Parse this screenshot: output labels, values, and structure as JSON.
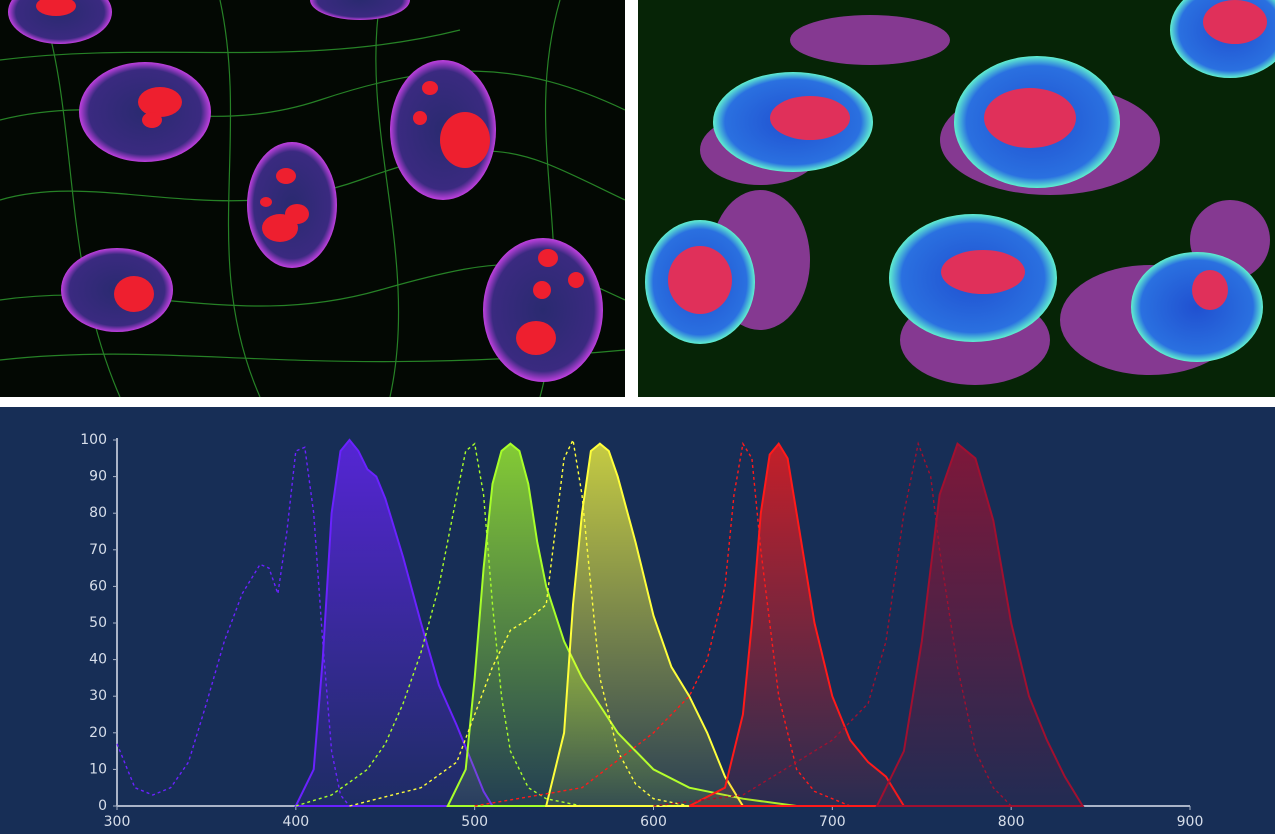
{
  "chart_data": {
    "type": "line",
    "xlim": [
      300,
      900
    ],
    "ylim": [
      0,
      100
    ],
    "xticks": [
      300,
      400,
      500,
      600,
      700,
      800,
      900
    ],
    "yticks": [
      0,
      10,
      20,
      30,
      40,
      50,
      60,
      70,
      80,
      90,
      100
    ],
    "series": [
      {
        "color": "#6a22ff",
        "line_style": "dashed",
        "filled": false,
        "x": [
          300,
          310,
          320,
          330,
          340,
          350,
          360,
          370,
          380,
          385,
          390,
          395,
          400,
          405,
          410,
          415,
          420,
          425,
          430
        ],
        "values": [
          17,
          5,
          3,
          5,
          12,
          28,
          45,
          58,
          66,
          65,
          58,
          75,
          97,
          98,
          80,
          45,
          15,
          3,
          0
        ]
      },
      {
        "color": "#6a22ff",
        "line_style": "solid",
        "filled": true,
        "x": [
          400,
          410,
          415,
          420,
          425,
          430,
          435,
          440,
          445,
          450,
          460,
          470,
          480,
          490,
          500,
          505,
          510
        ],
        "values": [
          0,
          10,
          40,
          80,
          97,
          100,
          97,
          92,
          90,
          84,
          68,
          50,
          33,
          22,
          10,
          4,
          0
        ]
      },
      {
        "color": "#a8ff2a",
        "line_style": "dashed",
        "filled": false,
        "x": [
          400,
          420,
          440,
          450,
          460,
          470,
          480,
          490,
          495,
          500,
          505,
          510,
          515,
          520,
          530,
          540,
          560
        ],
        "values": [
          0,
          3,
          10,
          17,
          28,
          42,
          60,
          85,
          97,
          99,
          85,
          55,
          30,
          15,
          5,
          2,
          0
        ]
      },
      {
        "color": "#a8ff2a",
        "line_style": "solid",
        "filled": true,
        "x": [
          485,
          495,
          500,
          505,
          510,
          515,
          520,
          525,
          530,
          535,
          540,
          550,
          560,
          580,
          600,
          620,
          650,
          680
        ],
        "values": [
          0,
          10,
          35,
          65,
          88,
          97,
          99,
          97,
          88,
          72,
          60,
          45,
          35,
          20,
          10,
          5,
          2,
          0
        ]
      },
      {
        "color": "#ffff3c",
        "line_style": "dashed",
        "filled": false,
        "x": [
          430,
          470,
          490,
          500,
          510,
          520,
          530,
          540,
          545,
          550,
          555,
          560,
          565,
          570,
          580,
          590,
          600,
          620
        ],
        "values": [
          0,
          5,
          12,
          25,
          38,
          48,
          51,
          55,
          75,
          95,
          100,
          85,
          60,
          35,
          15,
          6,
          2,
          0
        ]
      },
      {
        "color": "#ffff3c",
        "line_style": "solid",
        "filled": true,
        "x": [
          540,
          550,
          555,
          560,
          565,
          570,
          575,
          580,
          590,
          600,
          610,
          620,
          630,
          640,
          650
        ],
        "values": [
          0,
          20,
          55,
          80,
          97,
          99,
          97,
          90,
          72,
          52,
          38,
          30,
          20,
          8,
          0
        ]
      },
      {
        "color": "#ff1a1a",
        "line_style": "dashed",
        "filled": false,
        "x": [
          500,
          560,
          600,
          620,
          630,
          640,
          645,
          650,
          655,
          660,
          670,
          680,
          690,
          710
        ],
        "values": [
          0,
          5,
          20,
          30,
          40,
          60,
          85,
          99,
          95,
          70,
          30,
          10,
          4,
          0
        ]
      },
      {
        "color": "#ff1a1a",
        "line_style": "solid",
        "filled": true,
        "x": [
          620,
          640,
          650,
          655,
          660,
          665,
          670,
          675,
          680,
          690,
          700,
          710,
          720,
          730,
          740
        ],
        "values": [
          0,
          5,
          25,
          50,
          80,
          96,
          99,
          95,
          80,
          50,
          30,
          18,
          12,
          8,
          0
        ]
      },
      {
        "color": "#a01030",
        "line_style": "dashed",
        "filled": false,
        "x": [
          600,
          650,
          700,
          720,
          730,
          740,
          748,
          755,
          760,
          770,
          780,
          790,
          800
        ],
        "values": [
          0,
          3,
          18,
          28,
          45,
          80,
          99,
          90,
          70,
          38,
          15,
          5,
          0
        ]
      },
      {
        "color": "#a01030",
        "line_style": "solid",
        "filled": true,
        "x": [
          725,
          740,
          750,
          760,
          770,
          780,
          790,
          800,
          810,
          820,
          830,
          840
        ],
        "values": [
          0,
          15,
          45,
          85,
          99,
          95,
          78,
          50,
          30,
          18,
          8,
          0
        ]
      }
    ]
  }
}
